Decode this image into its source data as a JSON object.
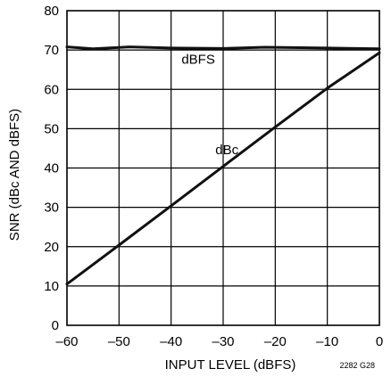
{
  "chart_data": {
    "type": "line",
    "xlabel": "INPUT LEVEL (dBFS)",
    "ylabel": "SNR (dBc AND dBFS)",
    "xlim": [
      -60,
      0
    ],
    "ylim": [
      0,
      80
    ],
    "x_ticks": [
      "–60",
      "–50",
      "–40",
      "–30",
      "–20",
      "–10",
      "0"
    ],
    "y_ticks": [
      "0",
      "10",
      "20",
      "30",
      "40",
      "50",
      "60",
      "70",
      "80"
    ],
    "grid": true,
    "series": [
      {
        "name": "dBFS",
        "x": [
          -60,
          -55,
          -48,
          -40,
          -30,
          -22,
          -10,
          0
        ],
        "y": [
          70.8,
          70.3,
          70.8,
          70.5,
          70.4,
          70.7,
          70.5,
          70.3
        ]
      },
      {
        "name": "dBc",
        "x": [
          -60,
          -50,
          -40,
          -30,
          -20,
          -10,
          0
        ],
        "y": [
          10.5,
          20.4,
          30.4,
          40.4,
          50.4,
          60.3,
          69.3
        ]
      }
    ],
    "annotations": [
      {
        "text": "dBFS",
        "x": -38,
        "y": 66.5
      },
      {
        "text": "dBc",
        "x": -31.5,
        "y": 43.5
      }
    ],
    "figure_code": "2282 G28"
  }
}
